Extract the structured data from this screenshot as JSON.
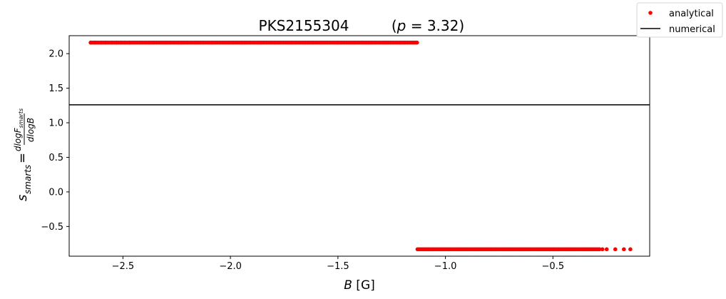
{
  "chart_data": {
    "type": "scatter",
    "title": "PKS2155304        (p = 3.32)",
    "xlabel": "B [G]",
    "ylabel": "s_smarts = dlogF_smarts / dlogB",
    "xlim": [
      -2.75,
      -0.05
    ],
    "ylim": [
      -0.93,
      2.26
    ],
    "x_ticks": [
      -2.5,
      -2.0,
      -1.5,
      -1.0,
      -0.5
    ],
    "x_tick_labels": [
      "−2.5",
      "−2.0",
      "−1.5",
      "−1.0",
      "−0.5"
    ],
    "y_ticks": [
      -0.5,
      0.0,
      0.5,
      1.0,
      1.5,
      2.0
    ],
    "y_tick_labels": [
      "−0.5",
      "0.0",
      "0.5",
      "1.0",
      "1.5",
      "2.0"
    ],
    "grid": false,
    "legend_position": "top-right, outside plot",
    "series": [
      {
        "name": "analytical",
        "marker": "point",
        "color": "#ff0000",
        "segments": [
          {
            "x_start": -2.65,
            "x_end": -1.13,
            "y": 2.16,
            "sparse_x": [
              -2.65,
              -2.63,
              -2.6,
              -2.58,
              -2.55,
              -2.53,
              -2.51,
              -2.49,
              -2.47
            ]
          },
          {
            "x_start": -1.13,
            "x_end": -0.28,
            "y": -0.83,
            "sparse_x": [
              -0.27,
              -0.25,
              -0.21,
              -0.17,
              -0.14
            ]
          }
        ]
      },
      {
        "name": "numerical",
        "marker": "line",
        "color": "#000000",
        "y": 1.26
      }
    ]
  }
}
